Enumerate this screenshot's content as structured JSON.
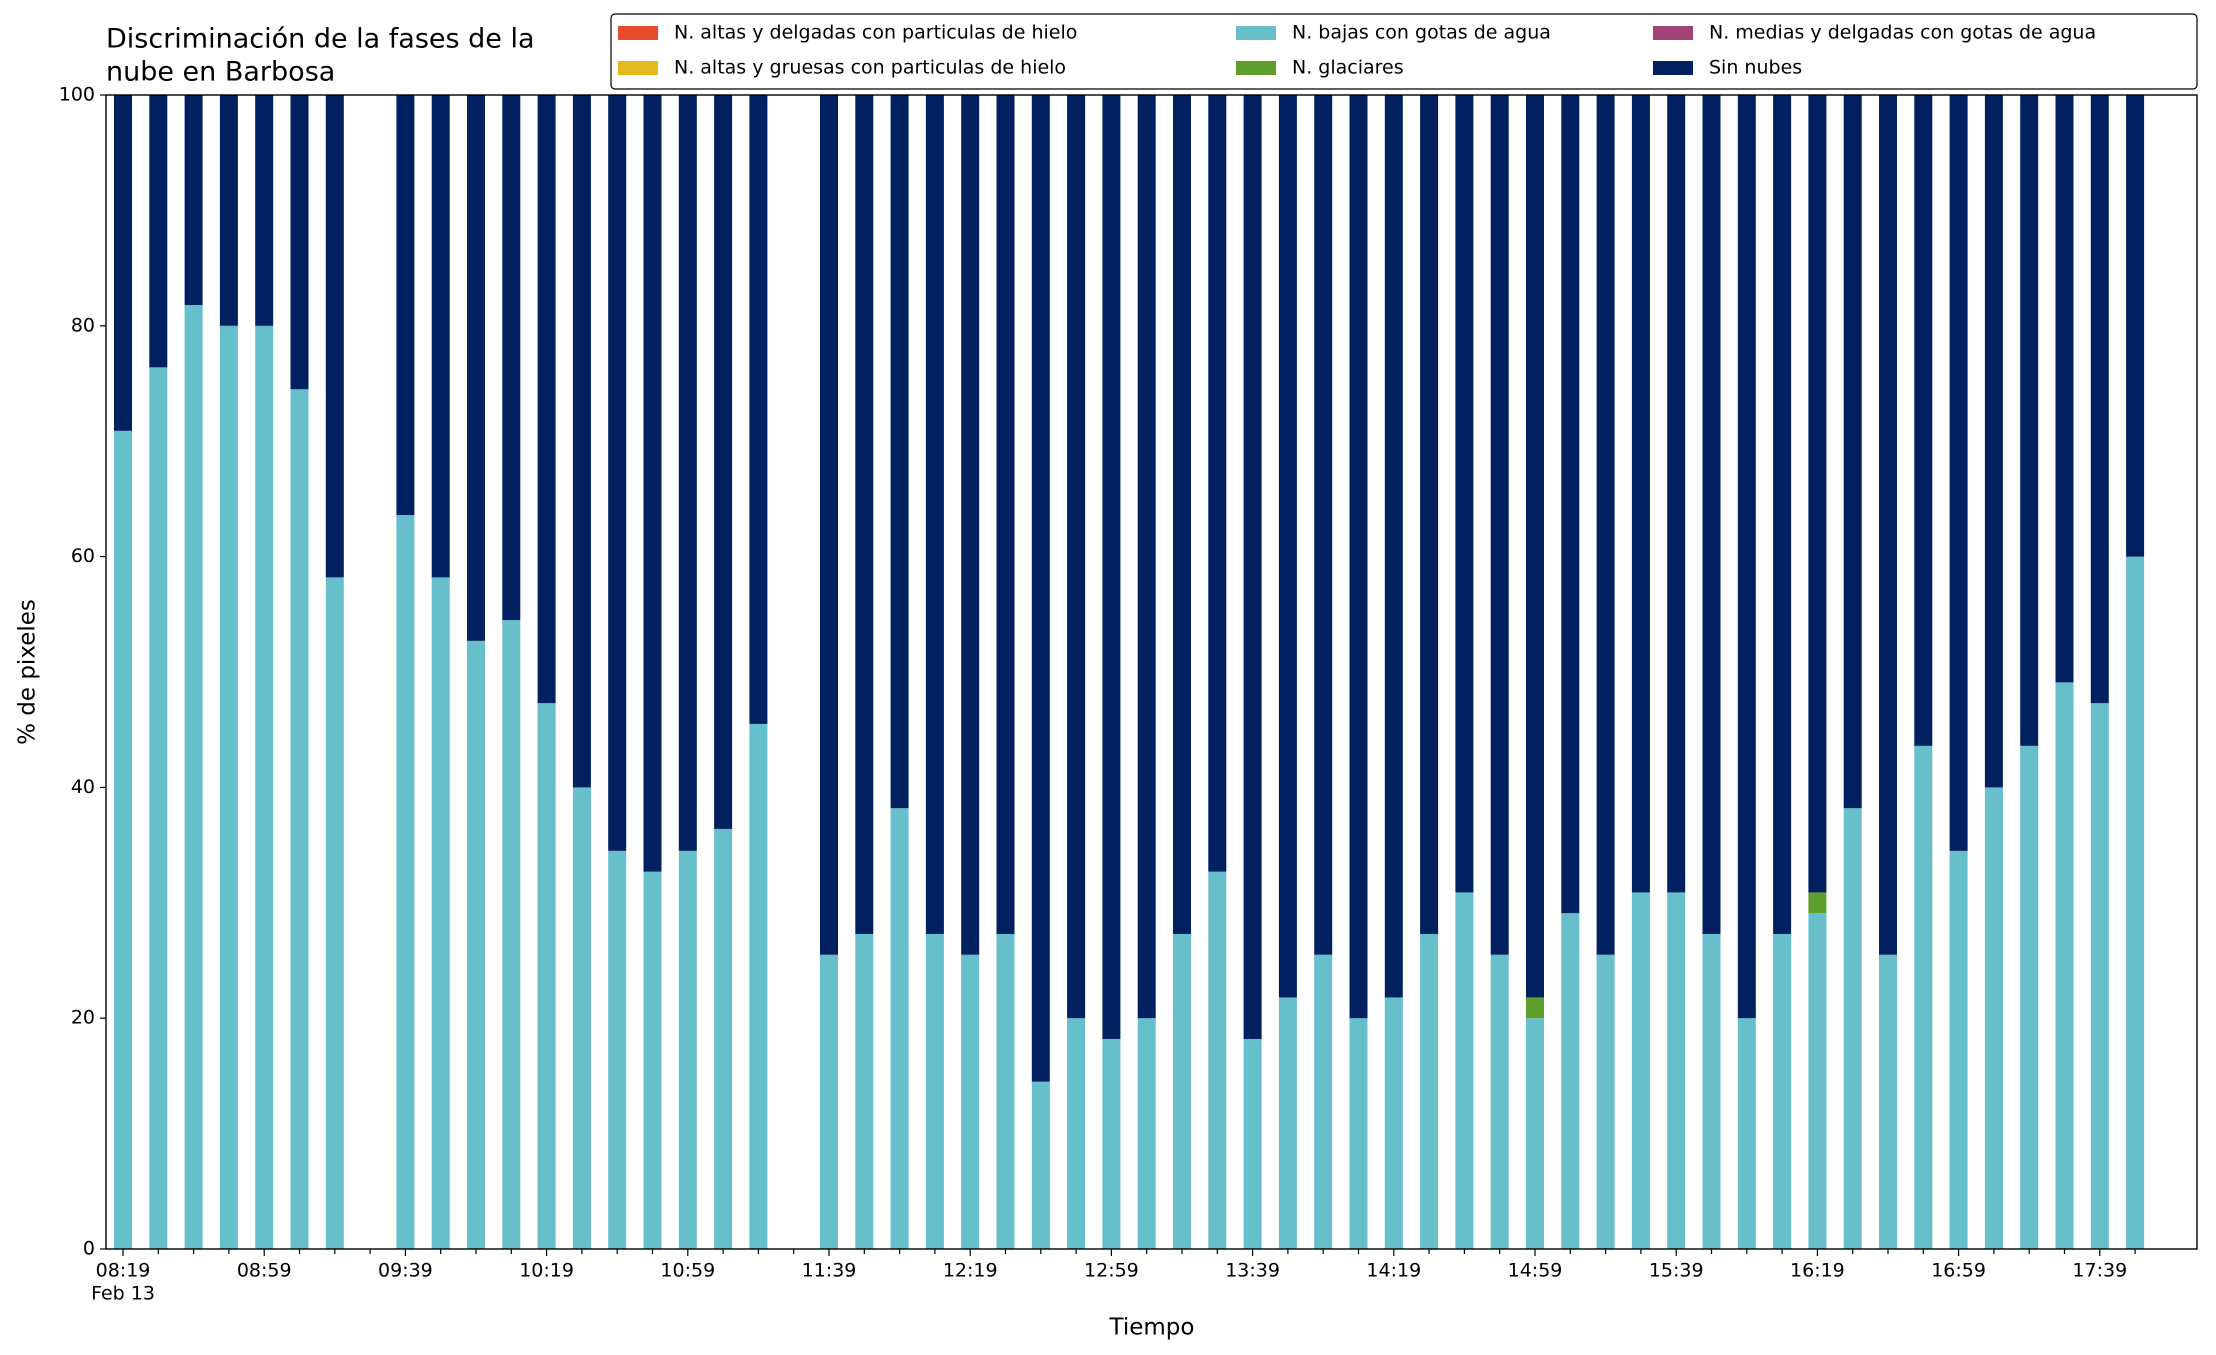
{
  "chart_data": {
    "type": "stacked_bar",
    "title": [
      "Discriminación de la fases de la",
      "nube en Barbosa"
    ],
    "x_label": "Tiempo",
    "y_label": "% de pixeles",
    "x_date_label": "Feb 13",
    "categories": [
      "08:19",
      null,
      null,
      null,
      "08:59",
      null,
      null,
      null,
      "09:39",
      null,
      null,
      null,
      "10:19",
      null,
      null,
      null,
      "10:59",
      null,
      null,
      null,
      "11:39",
      null,
      null,
      null,
      "12:19",
      null,
      null,
      null,
      "12:59",
      null,
      null,
      null,
      "13:39",
      null,
      null,
      null,
      "14:19",
      null,
      null,
      null,
      "14:59",
      null,
      null,
      null,
      "15:39",
      null,
      null,
      null,
      "16:19",
      null,
      null,
      null,
      "16:59",
      null,
      null,
      null,
      "17:39",
      null
    ],
    "ylim": [
      0,
      100
    ],
    "yticks": [
      0,
      20,
      40,
      60,
      80,
      100
    ],
    "series": [
      {
        "name": "N. altas y delgadas con particulas de hielo",
        "color": "#e84a2c",
        "values": [
          0,
          0,
          0,
          0,
          0,
          0,
          0,
          null,
          0,
          0,
          0,
          0,
          0,
          0,
          0,
          0,
          0,
          0,
          0,
          null,
          0,
          0,
          0,
          0,
          0,
          0,
          0,
          0,
          0,
          0,
          0,
          0,
          0,
          0,
          0,
          0,
          0,
          0,
          0,
          0,
          0,
          0,
          0,
          0,
          0,
          0,
          0,
          0,
          0,
          0,
          0,
          0,
          0,
          0,
          0,
          0,
          0,
          0
        ]
      },
      {
        "name": "N. altas y gruesas con particulas de hielo",
        "color": "#e5b91c",
        "values": [
          0,
          0,
          0,
          0,
          0,
          0,
          0,
          null,
          0,
          0,
          0,
          0,
          0,
          0,
          0,
          0,
          0,
          0,
          0,
          null,
          0,
          0,
          0,
          0,
          0,
          0,
          0,
          0,
          0,
          0,
          0,
          0,
          0,
          0,
          0,
          0,
          0,
          0,
          0,
          0,
          0,
          0,
          0,
          0,
          0,
          0,
          0,
          0,
          0,
          0,
          0,
          0,
          0,
          0,
          0,
          0,
          0,
          0
        ]
      },
      {
        "name": "N. bajas con gotas de agua",
        "color": "#66bfcb",
        "values": [
          70.9,
          76.4,
          81.8,
          80,
          80,
          74.5,
          58.2,
          null,
          63.6,
          58.2,
          52.7,
          54.5,
          47.3,
          40,
          34.5,
          32.7,
          34.5,
          36.4,
          45.5,
          null,
          25.5,
          27.3,
          38.2,
          27.3,
          25.5,
          27.3,
          14.5,
          20,
          18.2,
          20,
          27.3,
          32.7,
          18.2,
          21.8,
          25.5,
          20,
          21.8,
          27.3,
          30.9,
          25.5,
          20,
          29.1,
          25.5,
          30.9,
          30.9,
          27.3,
          20,
          27.3,
          29.1,
          38.2,
          25.5,
          43.6,
          34.5,
          40,
          43.6,
          49.1,
          47.3,
          60
        ]
      },
      {
        "name": "N. glaciares",
        "color": "#5e9e2d",
        "values": [
          0,
          0,
          0,
          0,
          0,
          0,
          0,
          null,
          0,
          0,
          0,
          0,
          0,
          0,
          0,
          0,
          0,
          0,
          0,
          null,
          0,
          0,
          0,
          0,
          0,
          0,
          0,
          0,
          0,
          0,
          0,
          0,
          0,
          0,
          0,
          0,
          0,
          0,
          0,
          0,
          1.8,
          0,
          0,
          0,
          0,
          0,
          0,
          0,
          1.8,
          0,
          0,
          0,
          0,
          0,
          0,
          0,
          0,
          0
        ]
      },
      {
        "name": "N. medias y delgadas con gotas de agua",
        "color": "#a34378",
        "values": [
          0,
          0,
          0,
          0,
          0,
          0,
          0,
          null,
          0,
          0,
          0,
          0,
          0,
          0,
          0,
          0,
          0,
          0,
          0,
          null,
          0,
          0,
          0,
          0,
          0,
          0,
          0,
          0,
          0,
          0,
          0,
          0,
          0,
          0,
          0,
          0,
          0,
          0,
          0,
          0,
          0,
          0,
          0,
          0,
          0,
          0,
          0,
          0,
          0,
          0,
          0,
          0,
          0,
          0,
          0,
          0,
          0,
          0
        ]
      },
      {
        "name": "Sin nubes",
        "color": "#002060",
        "values": [
          29.1,
          23.6,
          18.2,
          20,
          20,
          25.5,
          41.8,
          null,
          36.4,
          41.8,
          47.3,
          45.5,
          52.7,
          60,
          65.5,
          67.3,
          65.5,
          63.6,
          54.5,
          null,
          74.5,
          72.7,
          61.8,
          72.7,
          74.5,
          72.7,
          85.5,
          80,
          81.8,
          80,
          72.7,
          67.3,
          81.8,
          78.2,
          74.5,
          80,
          78.2,
          72.7,
          69.1,
          74.5,
          78.2,
          70.9,
          74.5,
          69.1,
          69.1,
          72.7,
          80,
          72.7,
          69.1,
          61.8,
          74.5,
          56.4,
          65.5,
          60,
          56.4,
          50.9,
          52.7,
          40
        ]
      }
    ]
  }
}
